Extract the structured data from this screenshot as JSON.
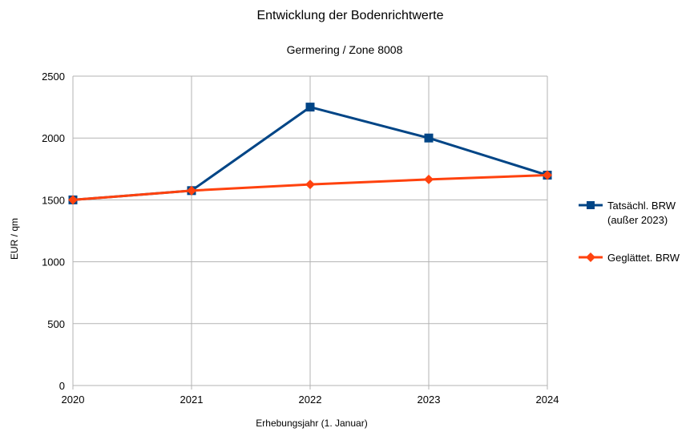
{
  "chart_data": {
    "type": "line",
    "title": "Entwicklung der Bodenrichtwerte",
    "subtitle": "Germering / Zone 8008",
    "xlabel": "Erhebungsjahr (1. Januar)",
    "ylabel": "EUR / qm",
    "categories": [
      "2020",
      "2021",
      "2022",
      "2023",
      "2024"
    ],
    "ylim": [
      0,
      2500
    ],
    "yticks": [
      "0",
      "500",
      "1000",
      "1500",
      "2000",
      "2500"
    ],
    "grid": true,
    "legend_position": "right",
    "series": [
      {
        "name_lines": [
          "Tatsächl. BRW",
          "(außer 2023)"
        ],
        "values": [
          1500,
          1575,
          2250,
          2000,
          1700
        ],
        "color": "#004586",
        "marker": "square"
      },
      {
        "name_lines": [
          "Geglättet. BRW"
        ],
        "values": [
          1500,
          1575,
          1625,
          1665,
          1700
        ],
        "color": "#ff420e",
        "marker": "diamond"
      }
    ]
  }
}
